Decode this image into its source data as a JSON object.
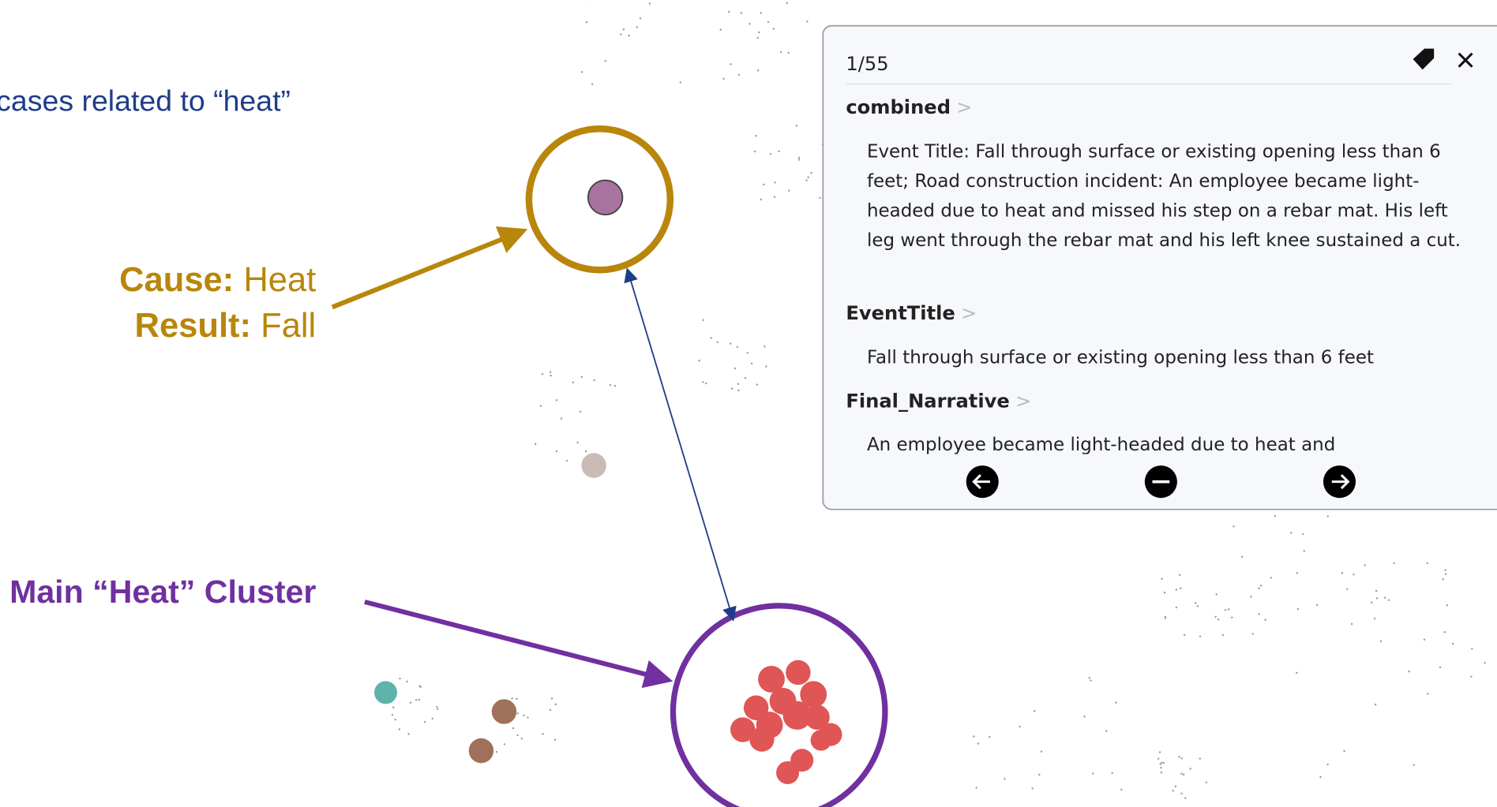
{
  "annotations": {
    "heading": "cases related to “heat”",
    "cause_label": "Cause:",
    "cause_value": "Heat",
    "result_label": "Result:",
    "result_value": "Fall",
    "cluster_label": "Main “Heat” Cluster"
  },
  "panel": {
    "counter": "1/55",
    "fields": [
      {
        "name": "combined",
        "text": "Event Title: Fall through surface or existing opening less than 6 feet; Road construction incident: An employee became light-headed due to heat and missed his step on a rebar mat. His left leg went through the rebar mat and his left knee sustained a cut."
      },
      {
        "name": "EventTitle",
        "text": "Fall through surface or existing opening less than 6 feet"
      },
      {
        "name": "Final_Narrative",
        "text": "An employee became light-headed due to heat and"
      }
    ]
  }
}
